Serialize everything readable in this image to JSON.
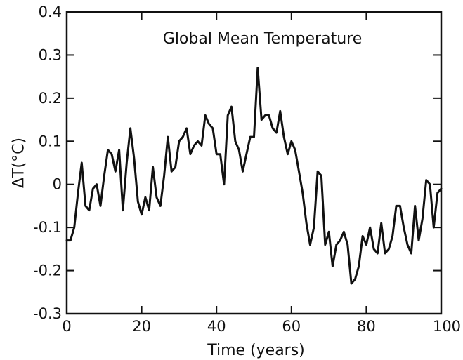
{
  "chart_data": {
    "type": "line",
    "title": "Global Mean Temperature",
    "xlabel": "Time (years)",
    "ylabel": "ΔT(°C)",
    "xlim": [
      0,
      100
    ],
    "ylim": [
      -0.3,
      0.4
    ],
    "x_ticks": [
      0,
      20,
      40,
      60,
      80,
      100
    ],
    "y_ticks": [
      0.4,
      0.3,
      0.2,
      0.1,
      0,
      -0.1,
      -0.2,
      -0.3
    ],
    "x_tick_labels": [
      "0",
      "20",
      "40",
      "60",
      "80",
      "100"
    ],
    "y_tick_labels": [
      "0.4",
      "0.3",
      "0.2",
      "0.1",
      "0",
      "-0.1",
      "-0.2",
      "-0.3"
    ],
    "grid": false,
    "series": [
      {
        "color": "#111111",
        "x": [
          0,
          1,
          2,
          3,
          4,
          5,
          6,
          7,
          8,
          9,
          10,
          11,
          12,
          13,
          14,
          15,
          16,
          17,
          18,
          19,
          20,
          21,
          22,
          23,
          24,
          25,
          26,
          27,
          28,
          29,
          30,
          31,
          32,
          33,
          34,
          35,
          36,
          37,
          38,
          39,
          40,
          41,
          42,
          43,
          44,
          45,
          46,
          47,
          48,
          49,
          50,
          51,
          52,
          53,
          54,
          55,
          56,
          57,
          58,
          59,
          60,
          61,
          62,
          63,
          64,
          65,
          66,
          67,
          68,
          69,
          70,
          71,
          72,
          73,
          74,
          75,
          76,
          77,
          78,
          79,
          80,
          81,
          82,
          83,
          84,
          85,
          86,
          87,
          88,
          89,
          90,
          91,
          92,
          93,
          94,
          95,
          96,
          97,
          98,
          99,
          100
        ],
        "y": [
          -0.13,
          -0.13,
          -0.1,
          -0.02,
          0.05,
          -0.05,
          -0.06,
          -0.01,
          0.0,
          -0.05,
          0.02,
          0.08,
          0.07,
          0.03,
          0.08,
          -0.06,
          0.05,
          0.13,
          0.06,
          -0.04,
          -0.07,
          -0.03,
          -0.06,
          0.04,
          -0.03,
          -0.05,
          0.02,
          0.11,
          0.03,
          0.04,
          0.1,
          0.11,
          0.13,
          0.07,
          0.09,
          0.1,
          0.09,
          0.16,
          0.14,
          0.13,
          0.07,
          0.07,
          0.0,
          0.16,
          0.18,
          0.1,
          0.08,
          0.03,
          0.07,
          0.11,
          0.11,
          0.27,
          0.15,
          0.16,
          0.16,
          0.13,
          0.12,
          0.17,
          0.11,
          0.07,
          0.1,
          0.08,
          0.03,
          -0.02,
          -0.09,
          -0.14,
          -0.1,
          0.03,
          0.02,
          -0.14,
          -0.11,
          -0.19,
          -0.14,
          -0.13,
          -0.11,
          -0.14,
          -0.23,
          -0.22,
          -0.19,
          -0.12,
          -0.14,
          -0.1,
          -0.15,
          -0.16,
          -0.09,
          -0.16,
          -0.15,
          -0.12,
          -0.05,
          -0.05,
          -0.1,
          -0.14,
          -0.16,
          -0.05,
          -0.13,
          -0.08,
          0.01,
          0.0,
          -0.1,
          -0.02,
          -0.01
        ]
      }
    ]
  }
}
